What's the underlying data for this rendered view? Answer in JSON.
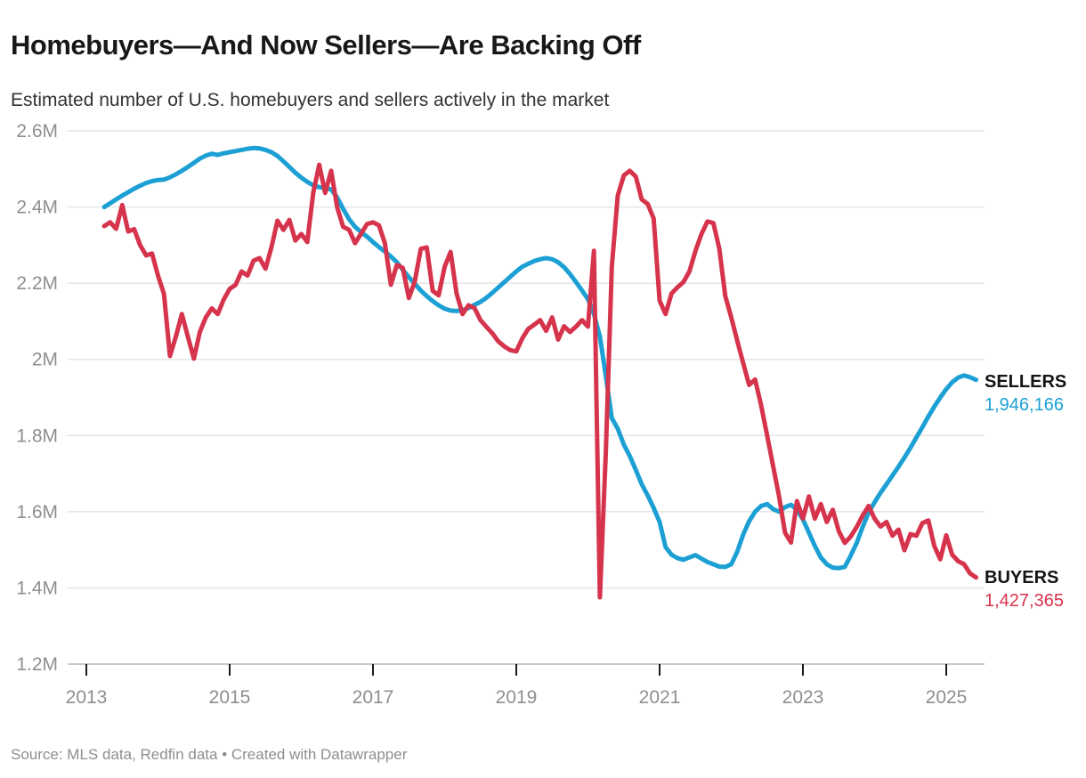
{
  "header": {
    "title": "Homebuyers—And Now Sellers—Are Backing Off",
    "subtitle": "Estimated number of U.S. homebuyers and sellers actively in the market"
  },
  "annotations": {
    "sellers": {
      "label": "SELLERS",
      "value": "1,946,166"
    },
    "buyers": {
      "label": "BUYERS",
      "value": "1,427,365"
    }
  },
  "footer": {
    "source": "Source: MLS data, Redfin data • Created with Datawrapper"
  },
  "colors": {
    "sellers_line": "#1CA0D4",
    "buyers_line": "#D6334C",
    "gridline": "#e3e3e3",
    "baseline": "#c9c9c9",
    "tick_mark": "#1a1a1a",
    "axis_label": "#8f8f8f"
  },
  "chart_data": {
    "type": "line",
    "title": "Homebuyers—And Now Sellers—Are Backing Off",
    "subtitle": "Estimated number of U.S. homebuyers and sellers actively in the market",
    "x_unit": "month",
    "x_start": {
      "year": 2013,
      "month": 4
    },
    "x_end": {
      "year": 2025,
      "month": 6
    },
    "ylim": [
      1200000,
      2600000
    ],
    "grid": true,
    "legend_position": "right-end-labels",
    "y_ticks": [
      {
        "label": "2.6M",
        "value": 2600000
      },
      {
        "label": "2.4M",
        "value": 2400000
      },
      {
        "label": "2.2M",
        "value": 2200000
      },
      {
        "label": "2M",
        "value": 2000000
      },
      {
        "label": "1.8M",
        "value": 1800000
      },
      {
        "label": "1.6M",
        "value": 1600000
      },
      {
        "label": "1.4M",
        "value": 1400000
      },
      {
        "label": "1.2M",
        "value": 1200000
      }
    ],
    "x_ticks": [
      {
        "label": "2013",
        "year": 2013
      },
      {
        "label": "2015",
        "year": 2015
      },
      {
        "label": "2017",
        "year": 2017
      },
      {
        "label": "2019",
        "year": 2019
      },
      {
        "label": "2021",
        "year": 2021
      },
      {
        "label": "2023",
        "year": 2023
      },
      {
        "label": "2025",
        "year": 2025
      }
    ],
    "series": [
      {
        "name": "SELLERS",
        "color": "#1CA0D4",
        "last_value": 1946166,
        "values": [
          2400000,
          2410000,
          2420000,
          2430000,
          2439000,
          2448000,
          2456000,
          2463000,
          2468000,
          2471000,
          2472000,
          2478000,
          2486000,
          2495000,
          2505000,
          2516000,
          2527000,
          2535000,
          2540000,
          2537000,
          2541000,
          2544000,
          2547000,
          2550000,
          2553000,
          2555000,
          2554000,
          2550000,
          2544000,
          2534000,
          2520000,
          2505000,
          2490000,
          2477000,
          2466000,
          2457000,
          2452000,
          2450000,
          2446000,
          2425000,
          2395000,
          2368000,
          2348000,
          2334000,
          2322000,
          2308000,
          2295000,
          2283000,
          2270000,
          2255000,
          2235000,
          2216000,
          2198000,
          2181000,
          2166000,
          2153000,
          2142000,
          2133000,
          2128000,
          2127000,
          2129000,
          2135000,
          2143000,
          2151000,
          2162000,
          2175000,
          2189000,
          2203000,
          2217000,
          2231000,
          2243000,
          2251000,
          2258000,
          2263000,
          2266000,
          2263000,
          2255000,
          2242000,
          2224000,
          2203000,
          2181000,
          2158000,
          2119000,
          2060000,
          1956000,
          1846000,
          1818000,
          1776000,
          1746000,
          1710000,
          1672000,
          1643000,
          1610000,
          1573000,
          1507000,
          1487000,
          1478000,
          1474000,
          1480000,
          1486000,
          1477000,
          1468000,
          1462000,
          1456000,
          1455000,
          1462000,
          1495000,
          1540000,
          1575000,
          1600000,
          1615000,
          1620000,
          1607000,
          1600000,
          1612000,
          1618000,
          1605000,
          1580000,
          1545000,
          1510000,
          1480000,
          1462000,
          1453000,
          1452000,
          1455000,
          1485000,
          1518000,
          1560000,
          1598000,
          1625000,
          1650000,
          1672000,
          1695000,
          1718000,
          1742000,
          1768000,
          1795000,
          1822000,
          1850000,
          1876000,
          1900000,
          1922000,
          1940000,
          1952000,
          1958000,
          1953000,
          1946166
        ]
      },
      {
        "name": "BUYERS",
        "color": "#D6334C",
        "last_value": 1427365,
        "values": [
          2350000,
          2360000,
          2343000,
          2405000,
          2336000,
          2342000,
          2300000,
          2273000,
          2278000,
          2220000,
          2172000,
          2009000,
          2060000,
          2119000,
          2060000,
          2002000,
          2072000,
          2110000,
          2134000,
          2119000,
          2157000,
          2185000,
          2196000,
          2231000,
          2220000,
          2259000,
          2266000,
          2238000,
          2295000,
          2364000,
          2340000,
          2366000,
          2312000,
          2329000,
          2308000,
          2437000,
          2511000,
          2437000,
          2495000,
          2399000,
          2348000,
          2340000,
          2305000,
          2330000,
          2355000,
          2360000,
          2352000,
          2305000,
          2196000,
          2248000,
          2240000,
          2161000,
          2205000,
          2290000,
          2294000,
          2180000,
          2168000,
          2243000,
          2282000,
          2173000,
          2119000,
          2142000,
          2135000,
          2103000,
          2085000,
          2068000,
          2047000,
          2034000,
          2024000,
          2021000,
          2055000,
          2080000,
          2091000,
          2103000,
          2075000,
          2110000,
          2052000,
          2087000,
          2072000,
          2086000,
          2103000,
          2086000,
          2285000,
          1375000,
          1757000,
          2243000,
          2430000,
          2483000,
          2495000,
          2480000,
          2420000,
          2408000,
          2370000,
          2154000,
          2119000,
          2173000,
          2189000,
          2203000,
          2231000,
          2285000,
          2329000,
          2362000,
          2358000,
          2290000,
          2166000,
          2110000,
          2049000,
          1990000,
          1933000,
          1947000,
          1880000,
          1800000,
          1720000,
          1640000,
          1545000,
          1519000,
          1628000,
          1582000,
          1640000,
          1582000,
          1620000,
          1573000,
          1605000,
          1549000,
          1518000,
          1535000,
          1560000,
          1590000,
          1615000,
          1582000,
          1561000,
          1573000,
          1537000,
          1553000,
          1499000,
          1541000,
          1537000,
          1570000,
          1577000,
          1510000,
          1475000,
          1538000,
          1487000,
          1470000,
          1462000,
          1438000,
          1427365
        ]
      }
    ]
  }
}
